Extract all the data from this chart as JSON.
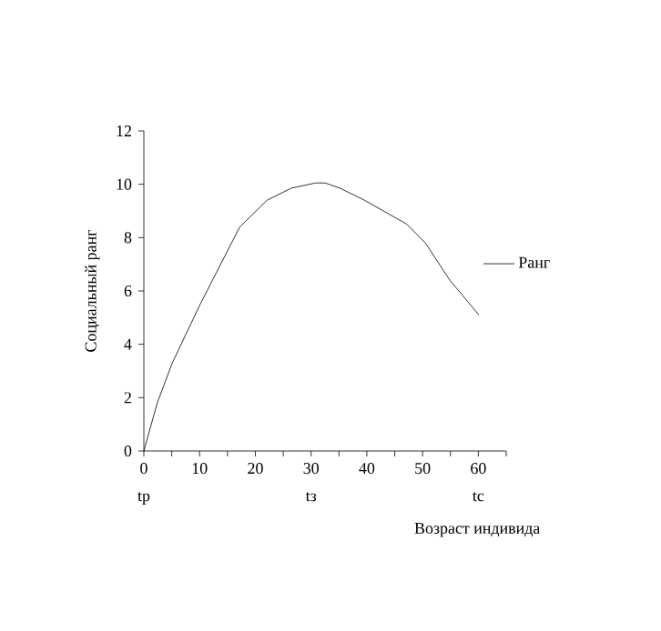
{
  "chart_data": {
    "type": "line",
    "xlabel": "Возраст индивида",
    "ylabel": "Социальный ранг",
    "x": [
      0,
      2.4,
      5.1,
      10.1,
      17.2,
      22.1,
      26.4,
      30.8,
      32.5,
      35.2,
      39.6,
      47.2,
      50.5,
      54.9,
      60.1
    ],
    "series": [
      {
        "name": "Ранг",
        "color": "#000000",
        "values": [
          0,
          1.8,
          3.3,
          5.5,
          8.4,
          9.4,
          9.85,
          10.05,
          10.05,
          9.85,
          9.4,
          8.5,
          7.8,
          6.4,
          5.1
        ]
      }
    ],
    "xlim": [
      0,
      65
    ],
    "xticks": [
      0,
      {
        "value": 5,
        "label": null
      },
      10,
      {
        "value": 15,
        "label": null
      },
      20,
      {
        "value": 25,
        "label": null
      },
      30,
      {
        "value": 35,
        "label": null
      },
      40,
      {
        "value": 45,
        "label": null
      },
      50,
      {
        "value": 55,
        "label": null
      },
      60,
      {
        "value": 65,
        "label": null
      }
    ],
    "ylim": [
      0,
      12
    ],
    "yticks": [
      0,
      2,
      4,
      6,
      8,
      10,
      12
    ],
    "annotations": [
      "tp",
      "tз",
      "tc"
    ],
    "legend": "right",
    "grid": false,
    "marker": "none",
    "line_style": "solid"
  }
}
